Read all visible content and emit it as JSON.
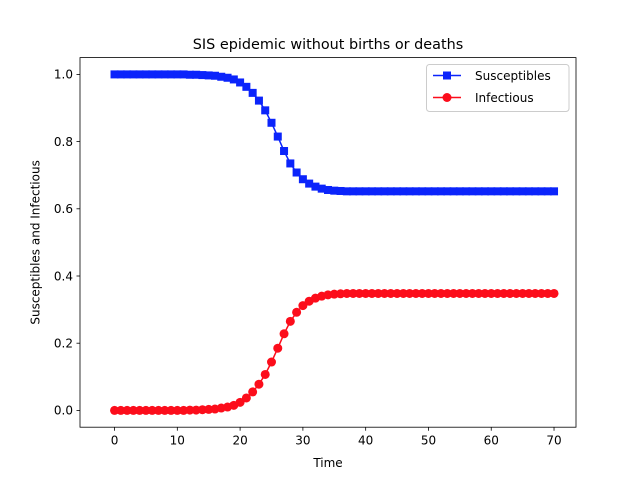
{
  "chart_data": {
    "type": "line",
    "title": "SIS epidemic without births or deaths",
    "xlabel": "Time",
    "ylabel": "Susceptibles and Infectious",
    "xlim": [
      -5.5,
      73.5
    ],
    "ylim": [
      -0.05,
      1.05
    ],
    "xticks": [
      0,
      10,
      20,
      30,
      40,
      50,
      60,
      70
    ],
    "xtick_labels": [
      "0",
      "10",
      "20",
      "30",
      "40",
      "50",
      "60",
      "70"
    ],
    "yticks": [
      0.0,
      0.2,
      0.4,
      0.6,
      0.8,
      1.0
    ],
    "ytick_labels": [
      "0.0",
      "0.2",
      "0.4",
      "0.6",
      "0.8",
      "1.0"
    ],
    "grid": false,
    "legend_position": "upper-right",
    "x": [
      0,
      1,
      2,
      3,
      4,
      5,
      6,
      7,
      8,
      9,
      10,
      11,
      12,
      13,
      14,
      15,
      16,
      17,
      18,
      19,
      20,
      21,
      22,
      23,
      24,
      25,
      26,
      27,
      28,
      29,
      30,
      31,
      32,
      33,
      34,
      35,
      36,
      37,
      38,
      39,
      40,
      41,
      42,
      43,
      44,
      45,
      46,
      47,
      48,
      49,
      50,
      51,
      52,
      53,
      54,
      55,
      56,
      57,
      58,
      59,
      60,
      61,
      62,
      63,
      64,
      65,
      66,
      67,
      68,
      69,
      70
    ],
    "series": [
      {
        "name": "Susceptibles",
        "color": "#0b24fb",
        "marker": "square",
        "values": [
          1.0,
          1.0,
          1.0,
          1.0,
          1.0,
          1.0,
          1.0,
          1.0,
          1.0,
          1.0,
          1.0,
          1.0,
          0.999,
          0.999,
          0.998,
          0.997,
          0.996,
          0.993,
          0.99,
          0.985,
          0.976,
          0.963,
          0.945,
          0.922,
          0.893,
          0.856,
          0.815,
          0.772,
          0.735,
          0.708,
          0.688,
          0.675,
          0.666,
          0.66,
          0.656,
          0.654,
          0.653,
          0.652,
          0.652,
          0.652,
          0.652,
          0.652,
          0.652,
          0.652,
          0.652,
          0.652,
          0.652,
          0.652,
          0.652,
          0.652,
          0.652,
          0.652,
          0.652,
          0.652,
          0.652,
          0.652,
          0.652,
          0.652,
          0.652,
          0.652,
          0.652,
          0.652,
          0.652,
          0.652,
          0.652,
          0.652,
          0.652,
          0.652,
          0.652,
          0.652,
          0.652
        ]
      },
      {
        "name": "Infectious",
        "color": "#fc0d1b",
        "marker": "circle",
        "values": [
          0.0,
          0.0,
          0.0,
          0.0,
          0.0,
          0.0,
          0.0,
          0.0,
          0.0,
          0.0,
          0.0,
          0.0,
          0.001,
          0.001,
          0.002,
          0.003,
          0.004,
          0.007,
          0.01,
          0.015,
          0.024,
          0.037,
          0.055,
          0.078,
          0.107,
          0.144,
          0.185,
          0.228,
          0.265,
          0.292,
          0.312,
          0.325,
          0.334,
          0.34,
          0.344,
          0.346,
          0.347,
          0.348,
          0.348,
          0.348,
          0.348,
          0.348,
          0.348,
          0.348,
          0.348,
          0.348,
          0.348,
          0.348,
          0.348,
          0.348,
          0.348,
          0.348,
          0.348,
          0.348,
          0.348,
          0.348,
          0.348,
          0.348,
          0.348,
          0.348,
          0.348,
          0.348,
          0.348,
          0.348,
          0.348,
          0.348,
          0.348,
          0.348,
          0.348,
          0.348,
          0.348
        ]
      }
    ]
  }
}
